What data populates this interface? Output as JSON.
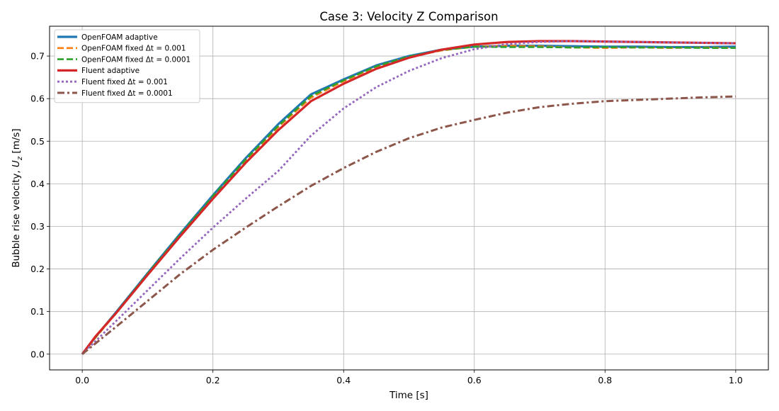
{
  "chart_data": {
    "type": "line",
    "title": "Case 3: Velocity Z Comparison",
    "xlabel": "Time [s]",
    "ylabel_prefix": "Bubble rise velocity, ",
    "ylabel_symbol": "U",
    "ylabel_subscript": "z",
    "ylabel_suffix": " [m/s]",
    "xlim": [
      -0.05,
      1.05
    ],
    "ylim": [
      -0.037,
      0.77
    ],
    "xticks": [
      0.0,
      0.2,
      0.4,
      0.6,
      0.8,
      1.0
    ],
    "xtick_labels": [
      "0.0",
      "0.2",
      "0.4",
      "0.6",
      "0.8",
      "1.0"
    ],
    "yticks": [
      0.0,
      0.1,
      0.2,
      0.3,
      0.4,
      0.5,
      0.6,
      0.7
    ],
    "ytick_labels": [
      "0.0",
      "0.1",
      "0.2",
      "0.3",
      "0.4",
      "0.5",
      "0.6",
      "0.7"
    ],
    "grid": true,
    "legend_position": "top-left",
    "series": [
      {
        "name": "OpenFOAM adaptive",
        "color": "#1f77b4",
        "style": "solid",
        "x": [
          0,
          0.02,
          0.05,
          0.1,
          0.15,
          0.2,
          0.25,
          0.3,
          0.35,
          0.4,
          0.45,
          0.5,
          0.55,
          0.6,
          0.65,
          0.7,
          0.75,
          0.8,
          0.85,
          0.9,
          0.95,
          1.0
        ],
        "y": [
          0,
          0.04,
          0.095,
          0.19,
          0.283,
          0.373,
          0.46,
          0.54,
          0.61,
          0.645,
          0.678,
          0.7,
          0.715,
          0.722,
          0.724,
          0.724,
          0.723,
          0.722,
          0.722,
          0.721,
          0.721,
          0.722
        ]
      },
      {
        "name": "OpenFOAM fixed Δt = 0.001",
        "color": "#ff7f0e",
        "style": "dashed",
        "x": [
          0,
          0.02,
          0.05,
          0.1,
          0.15,
          0.2,
          0.25,
          0.3,
          0.35,
          0.4,
          0.45,
          0.5,
          0.55,
          0.6,
          0.65,
          0.7,
          0.75,
          0.8,
          0.85,
          0.9,
          0.95,
          1.0
        ],
        "y": [
          0,
          0.038,
          0.093,
          0.188,
          0.28,
          0.37,
          0.455,
          0.533,
          0.602,
          0.641,
          0.675,
          0.698,
          0.713,
          0.722,
          0.724,
          0.723,
          0.72,
          0.719,
          0.72,
          0.719,
          0.72,
          0.719
        ]
      },
      {
        "name": "OpenFOAM fixed Δt = 0.0001",
        "color": "#2ca02c",
        "style": "dashed",
        "x": [
          0,
          0.02,
          0.05,
          0.1,
          0.15,
          0.2,
          0.25,
          0.3,
          0.35,
          0.4,
          0.45,
          0.5,
          0.55,
          0.6,
          0.65,
          0.7,
          0.75,
          0.8,
          0.85,
          0.9,
          0.95,
          1.0
        ],
        "y": [
          0,
          0.039,
          0.094,
          0.189,
          0.281,
          0.371,
          0.457,
          0.536,
          0.606,
          0.643,
          0.676,
          0.699,
          0.714,
          0.722,
          0.721,
          0.721,
          0.72,
          0.721,
          0.72,
          0.72,
          0.719,
          0.719
        ]
      },
      {
        "name": "Fluent adaptive",
        "color": "#d62728",
        "style": "solid",
        "x": [
          0,
          0.02,
          0.05,
          0.1,
          0.15,
          0.2,
          0.25,
          0.3,
          0.35,
          0.4,
          0.45,
          0.5,
          0.55,
          0.6,
          0.65,
          0.7,
          0.75,
          0.8,
          0.85,
          0.9,
          0.95,
          1.0
        ],
        "y": [
          0,
          0.041,
          0.093,
          0.186,
          0.277,
          0.365,
          0.449,
          0.526,
          0.594,
          0.635,
          0.67,
          0.696,
          0.715,
          0.727,
          0.733,
          0.735,
          0.735,
          0.734,
          0.733,
          0.732,
          0.731,
          0.73
        ]
      },
      {
        "name": "Fluent fixed Δt = 0.001",
        "color": "#9467bd",
        "style": "dotted",
        "x": [
          0,
          0.05,
          0.1,
          0.15,
          0.2,
          0.25,
          0.3,
          0.35,
          0.4,
          0.45,
          0.5,
          0.55,
          0.6,
          0.65,
          0.7,
          0.75,
          0.8,
          0.85,
          0.9,
          0.95,
          1.0
        ],
        "y": [
          0,
          0.075,
          0.15,
          0.225,
          0.297,
          0.365,
          0.43,
          0.513,
          0.577,
          0.627,
          0.665,
          0.695,
          0.716,
          0.728,
          0.733,
          0.735,
          0.734,
          0.733,
          0.732,
          0.731,
          0.73
        ]
      },
      {
        "name": "Fluent fixed Δt = 0.0001",
        "color": "#8c564b",
        "style": "dashdot",
        "x": [
          0,
          0.05,
          0.1,
          0.15,
          0.2,
          0.25,
          0.3,
          0.35,
          0.4,
          0.45,
          0.5,
          0.55,
          0.6,
          0.65,
          0.7,
          0.75,
          0.8,
          0.85,
          0.9,
          0.95,
          1.0
        ],
        "y": [
          0,
          0.062,
          0.125,
          0.188,
          0.245,
          0.297,
          0.347,
          0.395,
          0.437,
          0.475,
          0.507,
          0.532,
          0.55,
          0.567,
          0.58,
          0.588,
          0.594,
          0.597,
          0.6,
          0.603,
          0.605
        ]
      }
    ]
  }
}
